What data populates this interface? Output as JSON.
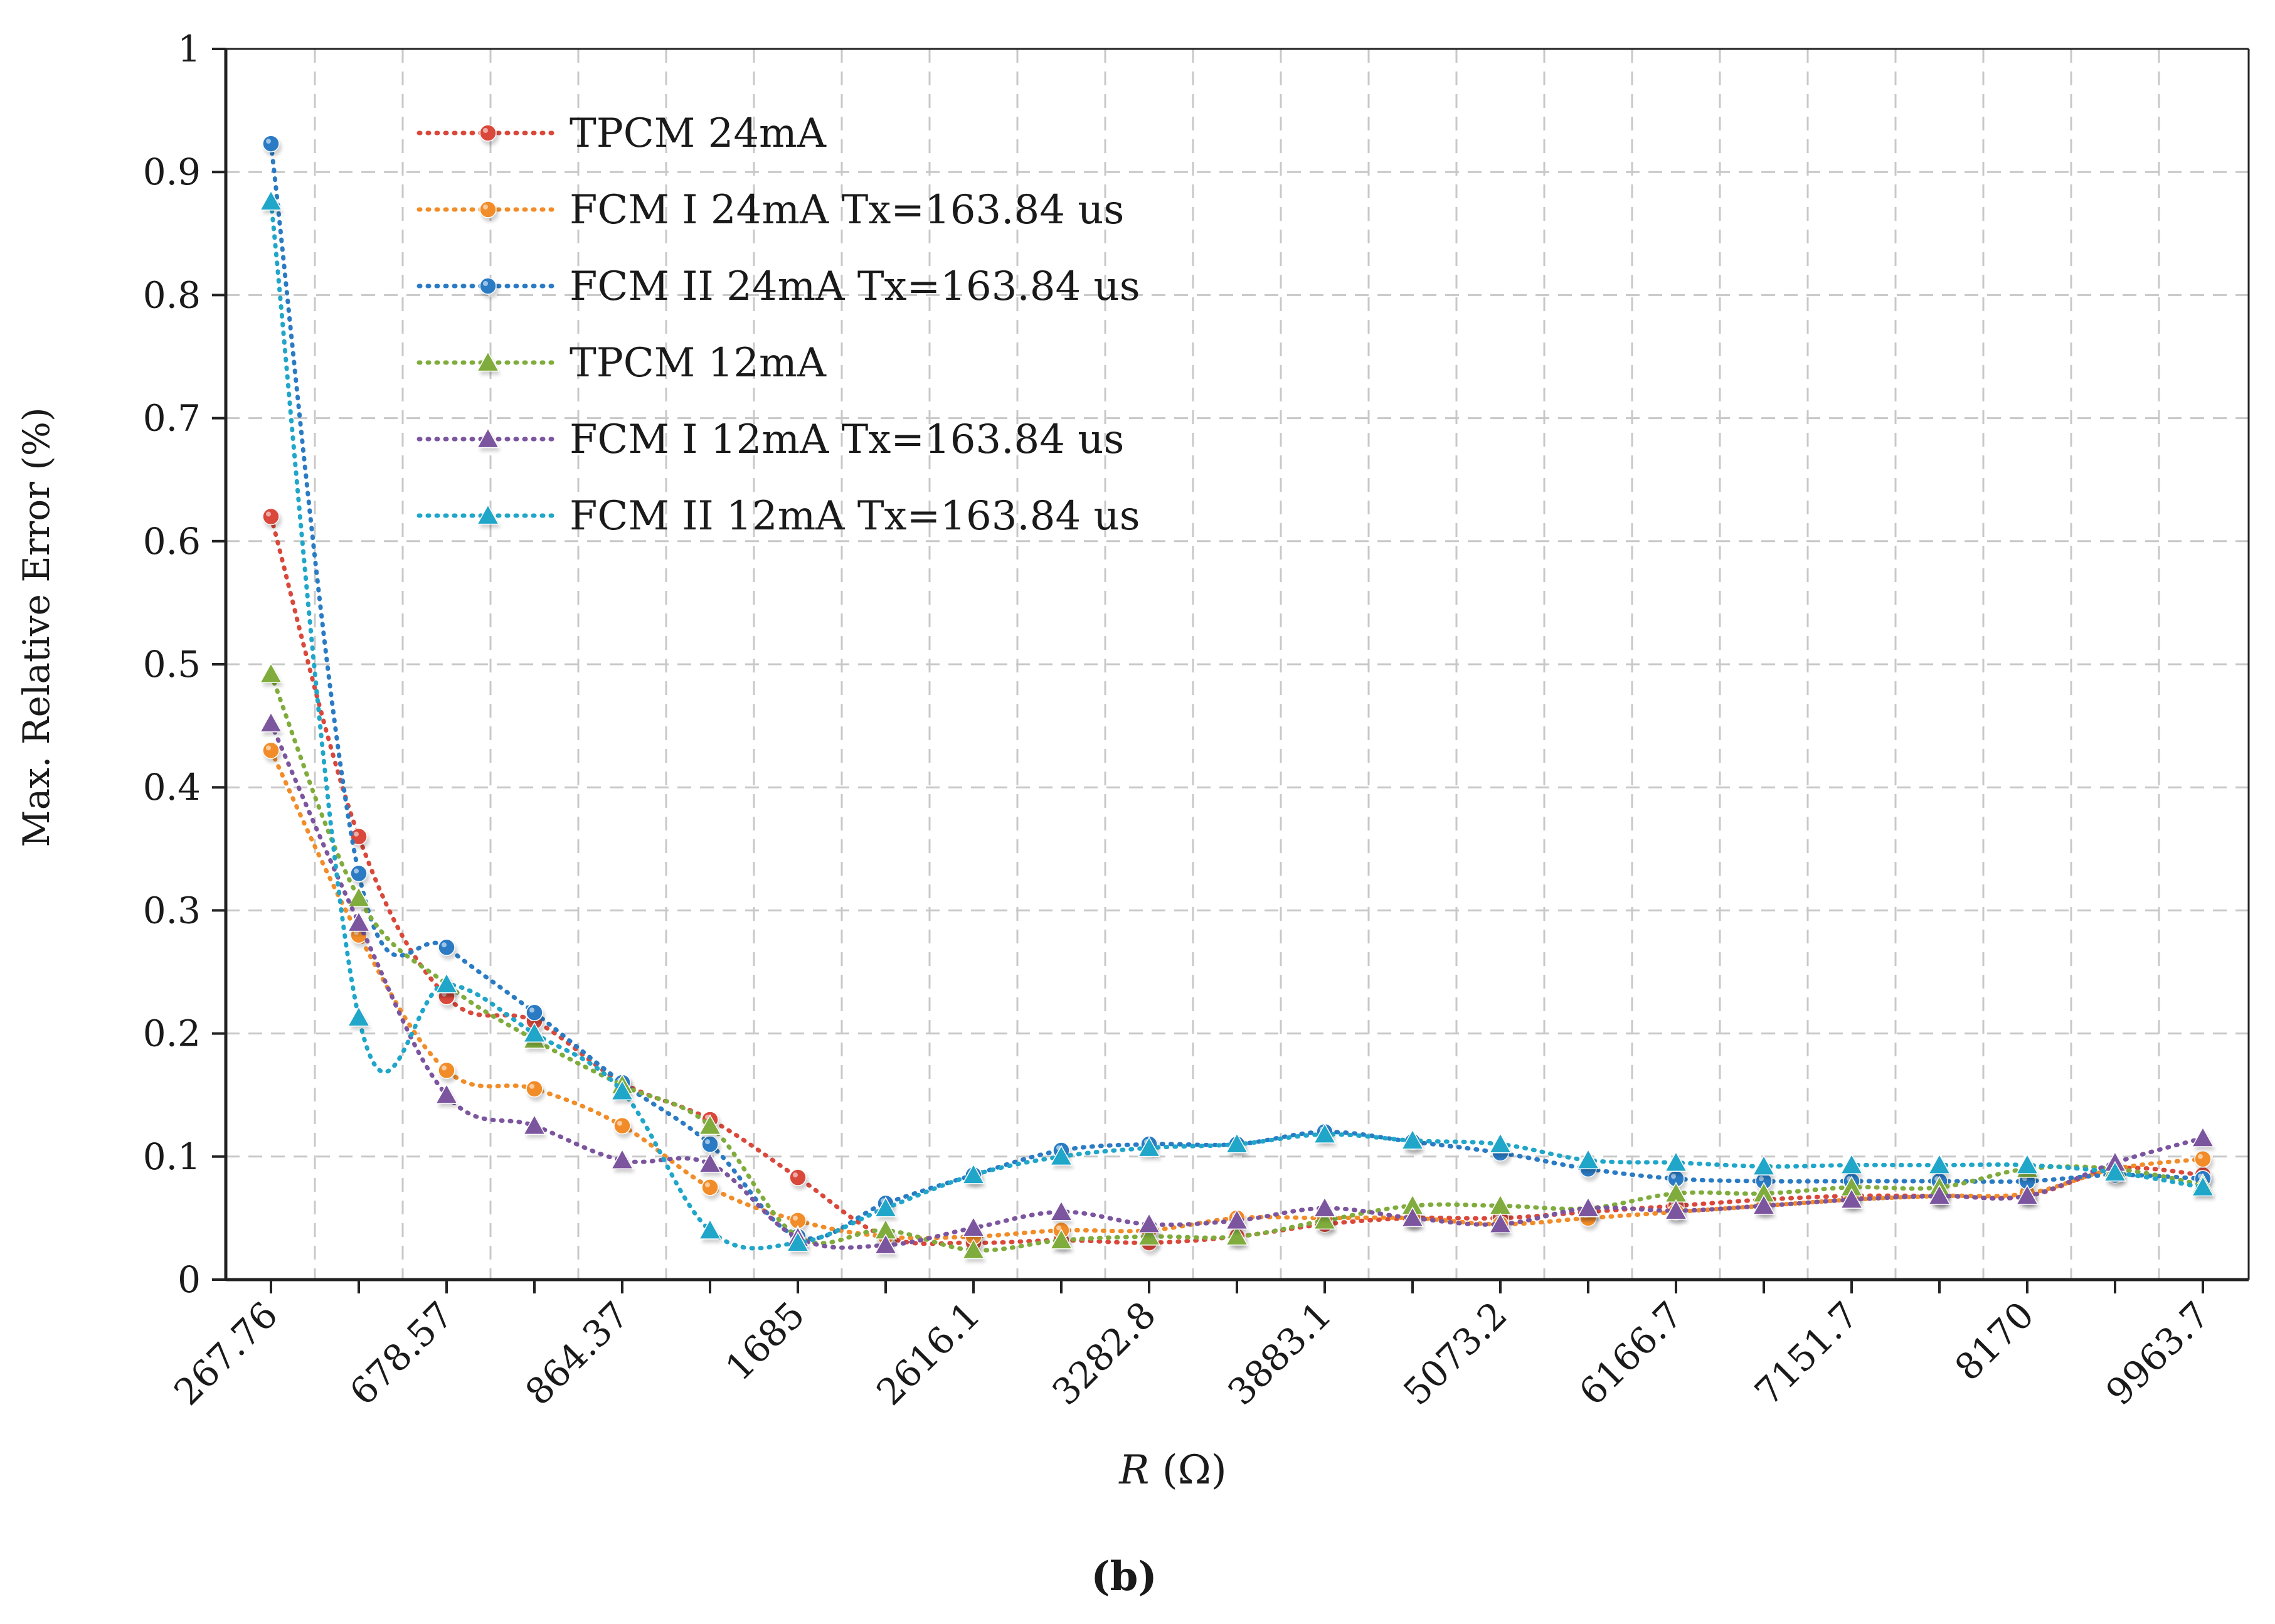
{
  "chart_data": {
    "type": "line",
    "xlabel_italic": "R",
    "xlabel_rest": " (Ω)",
    "ylabel": "Max. Relative Error (%)",
    "caption": "(b)",
    "ylim": [
      0,
      1
    ],
    "y_ticks": [
      "0",
      "0.1",
      "0.2",
      "0.3",
      "0.4",
      "0.5",
      "0.6",
      "0.7",
      "0.8",
      "0.9",
      "1"
    ],
    "categories": [
      "267.76",
      "",
      "678.57",
      "",
      "864.37",
      "",
      "1685",
      "",
      "2616.1",
      "",
      "3282.8",
      "",
      "3883.1",
      "",
      "5073.2",
      "",
      "6166.7",
      "",
      "7151.7",
      "",
      "8170",
      "",
      "9963.7"
    ],
    "grid": true,
    "legend_position": "top-left",
    "series": [
      {
        "name": "TPCM 24mA",
        "color": "#d9483b",
        "marker": "circle",
        "values": [
          0.62,
          0.36,
          0.23,
          0.21,
          0.16,
          0.13,
          0.083,
          0.035,
          0.03,
          0.032,
          0.03,
          0.035,
          0.045,
          0.05,
          0.05,
          0.055,
          0.06,
          0.065,
          0.068,
          0.068,
          0.068,
          0.09,
          0.085
        ]
      },
      {
        "name": "FCM I 24mA Tx=163.84 us",
        "color": "#f28c28",
        "marker": "circle",
        "values": [
          0.43,
          0.28,
          0.17,
          0.155,
          0.125,
          0.075,
          0.048,
          0.035,
          0.035,
          0.04,
          0.04,
          0.05,
          0.05,
          0.05,
          0.045,
          0.05,
          0.055,
          0.06,
          0.065,
          0.068,
          0.07,
          0.09,
          0.098
        ]
      },
      {
        "name": "FCM II 24mA Tx=163.84 us",
        "color": "#2a7bc4",
        "marker": "circle",
        "values": [
          0.923,
          0.33,
          0.27,
          0.217,
          0.16,
          0.11,
          0.035,
          0.062,
          0.085,
          0.105,
          0.11,
          0.11,
          0.12,
          0.112,
          0.103,
          0.09,
          0.082,
          0.08,
          0.08,
          0.08,
          0.08,
          0.085,
          0.082
        ]
      },
      {
        "name": "TPCM 12mA",
        "color": "#7fac3c",
        "marker": "triangle",
        "values": [
          0.492,
          0.31,
          0.24,
          0.195,
          0.158,
          0.125,
          0.035,
          0.04,
          0.024,
          0.032,
          0.035,
          0.035,
          0.048,
          0.06,
          0.06,
          0.058,
          0.07,
          0.07,
          0.075,
          0.075,
          0.09,
          0.09,
          0.077
        ]
      },
      {
        "name": "FCM I 12mA Tx=163.84 us",
        "color": "#7c559f",
        "marker": "triangle",
        "values": [
          0.452,
          0.29,
          0.15,
          0.125,
          0.097,
          0.094,
          0.034,
          0.028,
          0.042,
          0.055,
          0.045,
          0.048,
          0.058,
          0.05,
          0.045,
          0.058,
          0.056,
          0.06,
          0.065,
          0.068,
          0.068,
          0.095,
          0.115
        ]
      },
      {
        "name": "FCM II 12mA Tx=163.84 us",
        "color": "#1fa6c9",
        "marker": "triangle",
        "values": [
          0.876,
          0.213,
          0.24,
          0.2,
          0.153,
          0.04,
          0.03,
          0.058,
          0.085,
          0.1,
          0.107,
          0.11,
          0.118,
          0.113,
          0.11,
          0.097,
          0.095,
          0.092,
          0.093,
          0.093,
          0.093,
          0.087,
          0.075
        ]
      }
    ]
  }
}
